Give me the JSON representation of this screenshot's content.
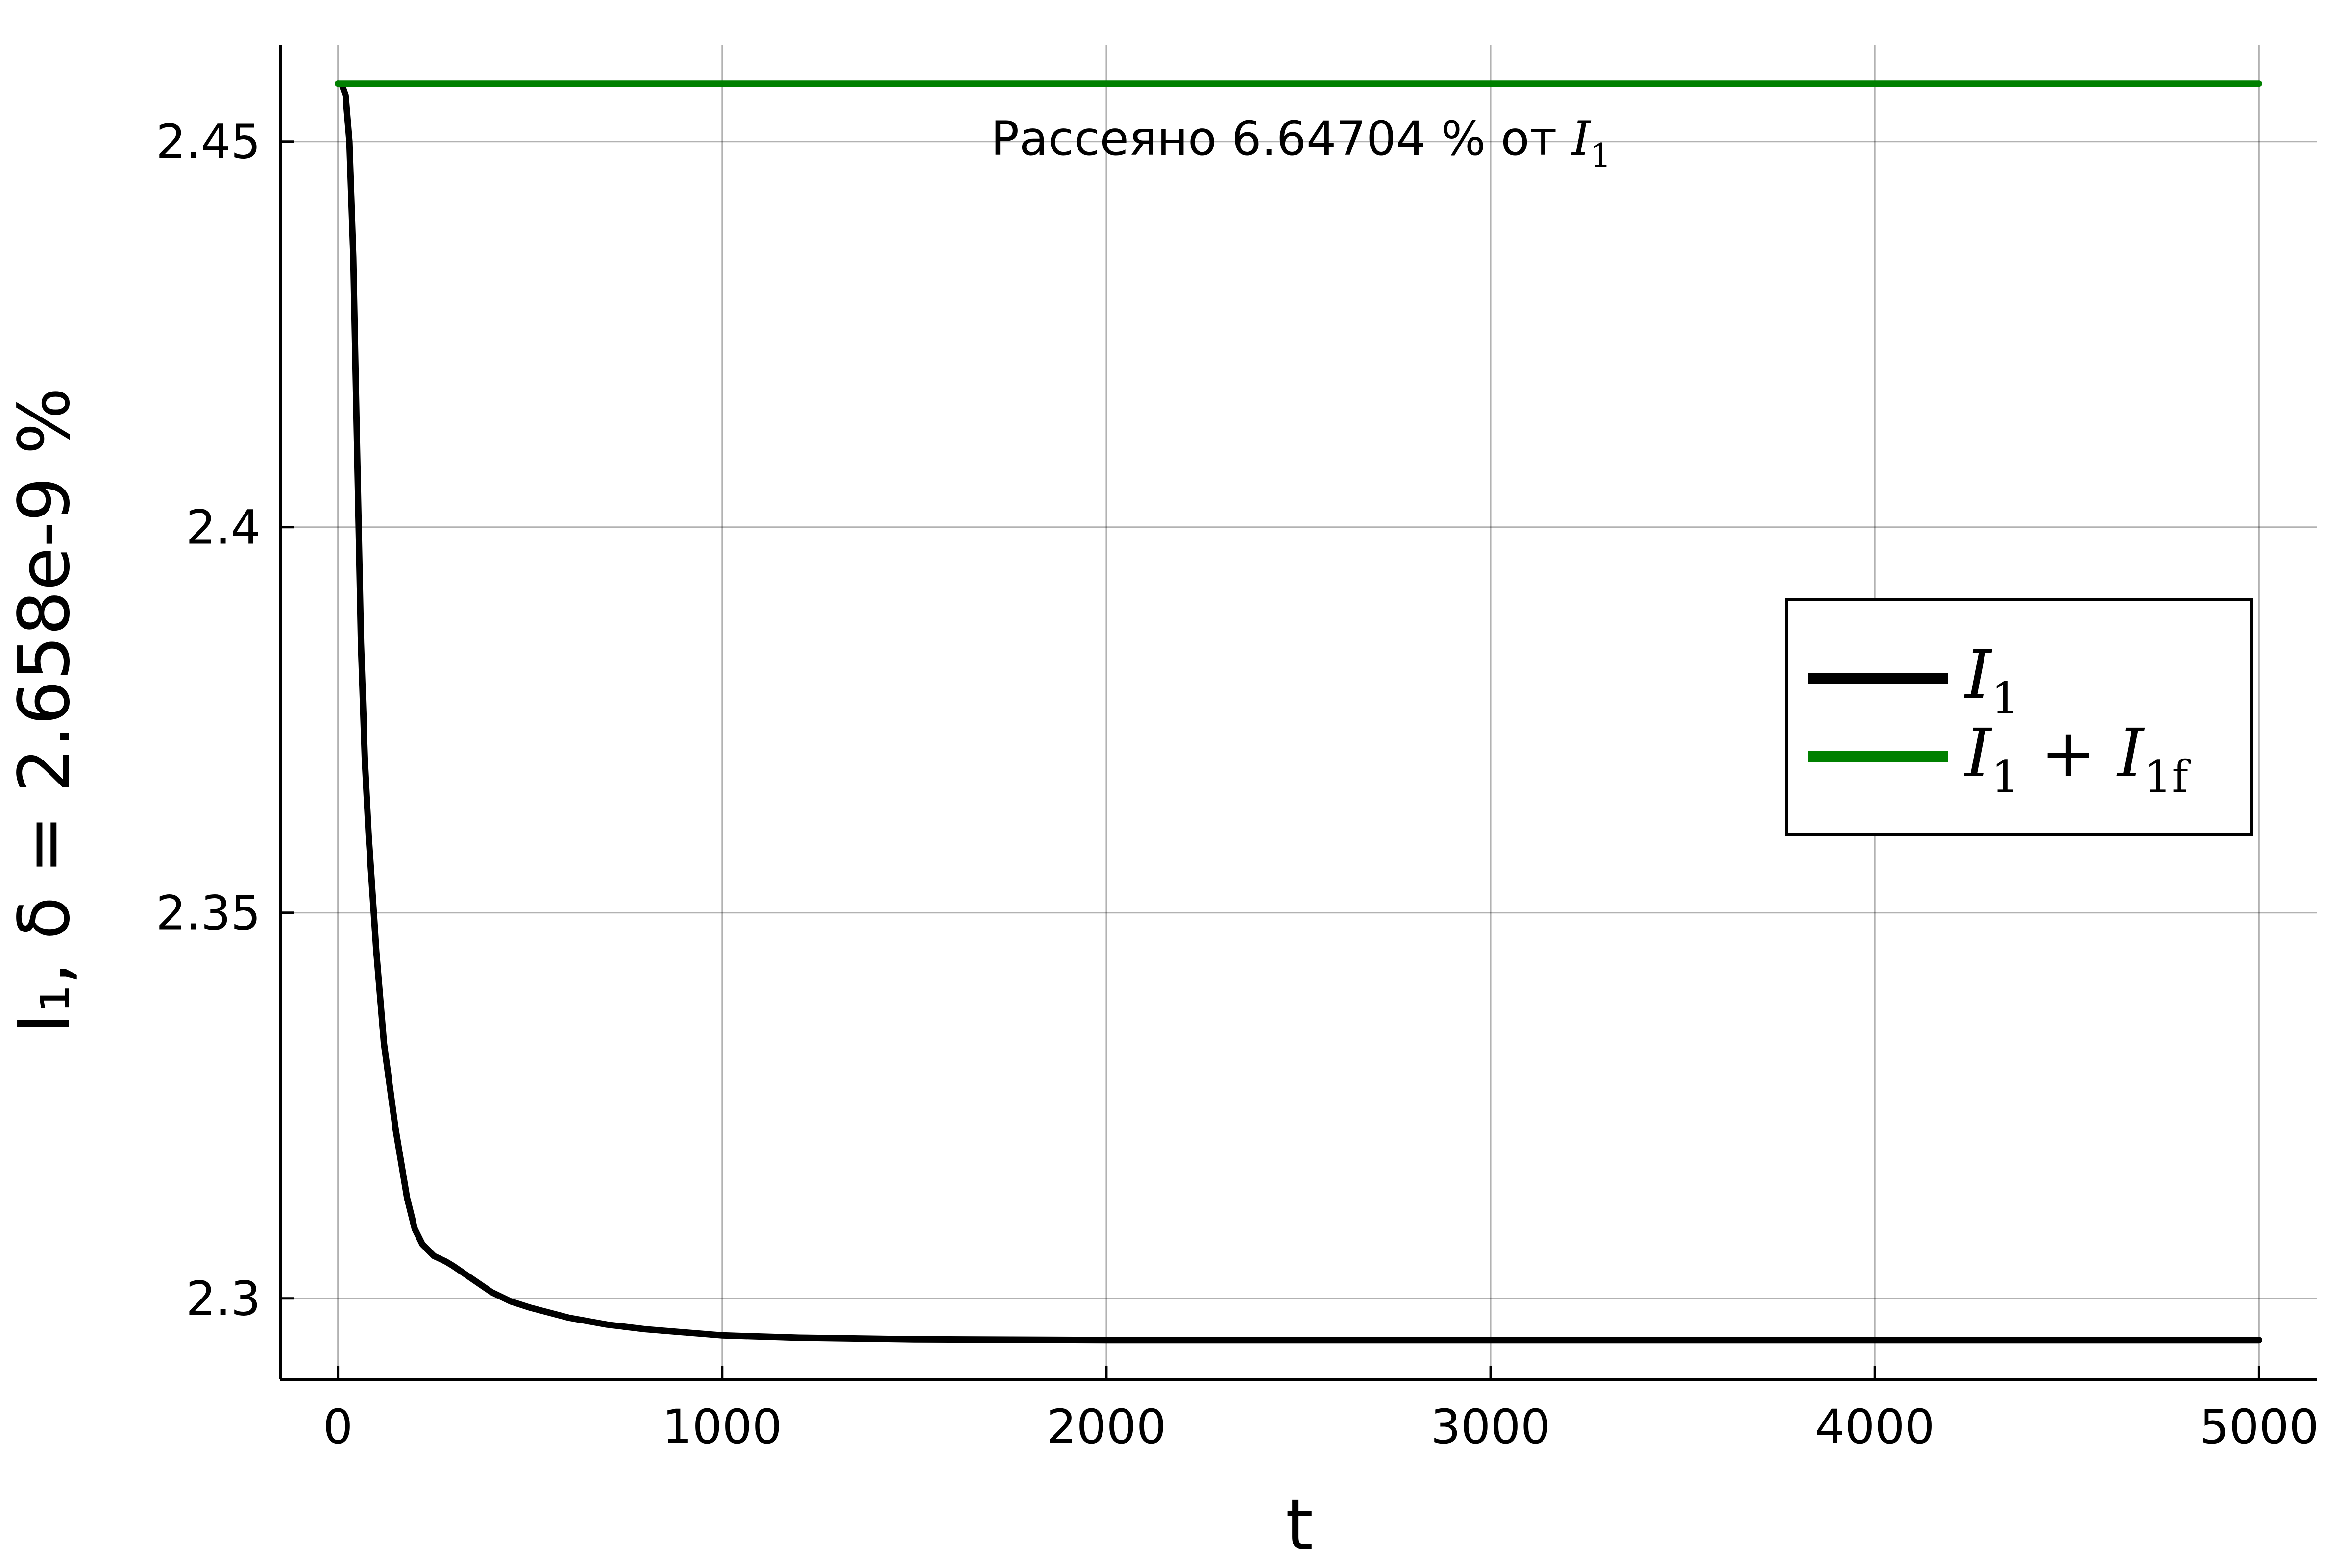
{
  "chart_data": {
    "type": "line",
    "xlabel": "t",
    "ylabel": "I₁, δ = 2.658e-9 %",
    "xlim": [
      -150,
      5150
    ],
    "ylim": [
      2.2895,
      2.4625
    ],
    "xticks": [
      0,
      1000,
      2000,
      3000,
      4000,
      5000
    ],
    "xtick_labels": [
      "0",
      "1000",
      "2000",
      "3000",
      "4000",
      "5000"
    ],
    "yticks": [
      2.3,
      2.35,
      2.4,
      2.45
    ],
    "ytick_labels": [
      "2.3",
      "2.35",
      "2.4",
      "2.45"
    ],
    "grid": true,
    "legend_position": "right",
    "annotation": {
      "text": "Рассеяно 6.64704 % от ",
      "math_main": "I",
      "math_sub": "1",
      "x": 2500,
      "y": 2.4495
    },
    "series": [
      {
        "name": "I",
        "name_sub": "1",
        "color": "#000000",
        "x": [
          0,
          10,
          20,
          30,
          40,
          50,
          60,
          70,
          80,
          100,
          120,
          150,
          180,
          200,
          220,
          250,
          280,
          300,
          350,
          400,
          450,
          500,
          600,
          700,
          800,
          1000,
          1200,
          1500,
          2000,
          3000,
          4000,
          5000
        ],
        "y": [
          2.4575,
          2.4574,
          2.456,
          2.45,
          2.435,
          2.41,
          2.385,
          2.37,
          2.36,
          2.345,
          2.333,
          2.322,
          2.313,
          2.309,
          2.307,
          2.3055,
          2.3048,
          2.3042,
          2.3025,
          2.3008,
          2.2996,
          2.2988,
          2.2975,
          2.2966,
          2.296,
          2.2952,
          2.2949,
          2.2947,
          2.2946,
          2.2946,
          2.2946,
          2.2946
        ]
      },
      {
        "name": "I",
        "name_sub": "1",
        "name_extra": " + I",
        "name_extra_sub": "1f",
        "color": "#008000",
        "x": [
          0,
          5000
        ],
        "y": [
          2.4575,
          2.4575
        ]
      }
    ]
  }
}
